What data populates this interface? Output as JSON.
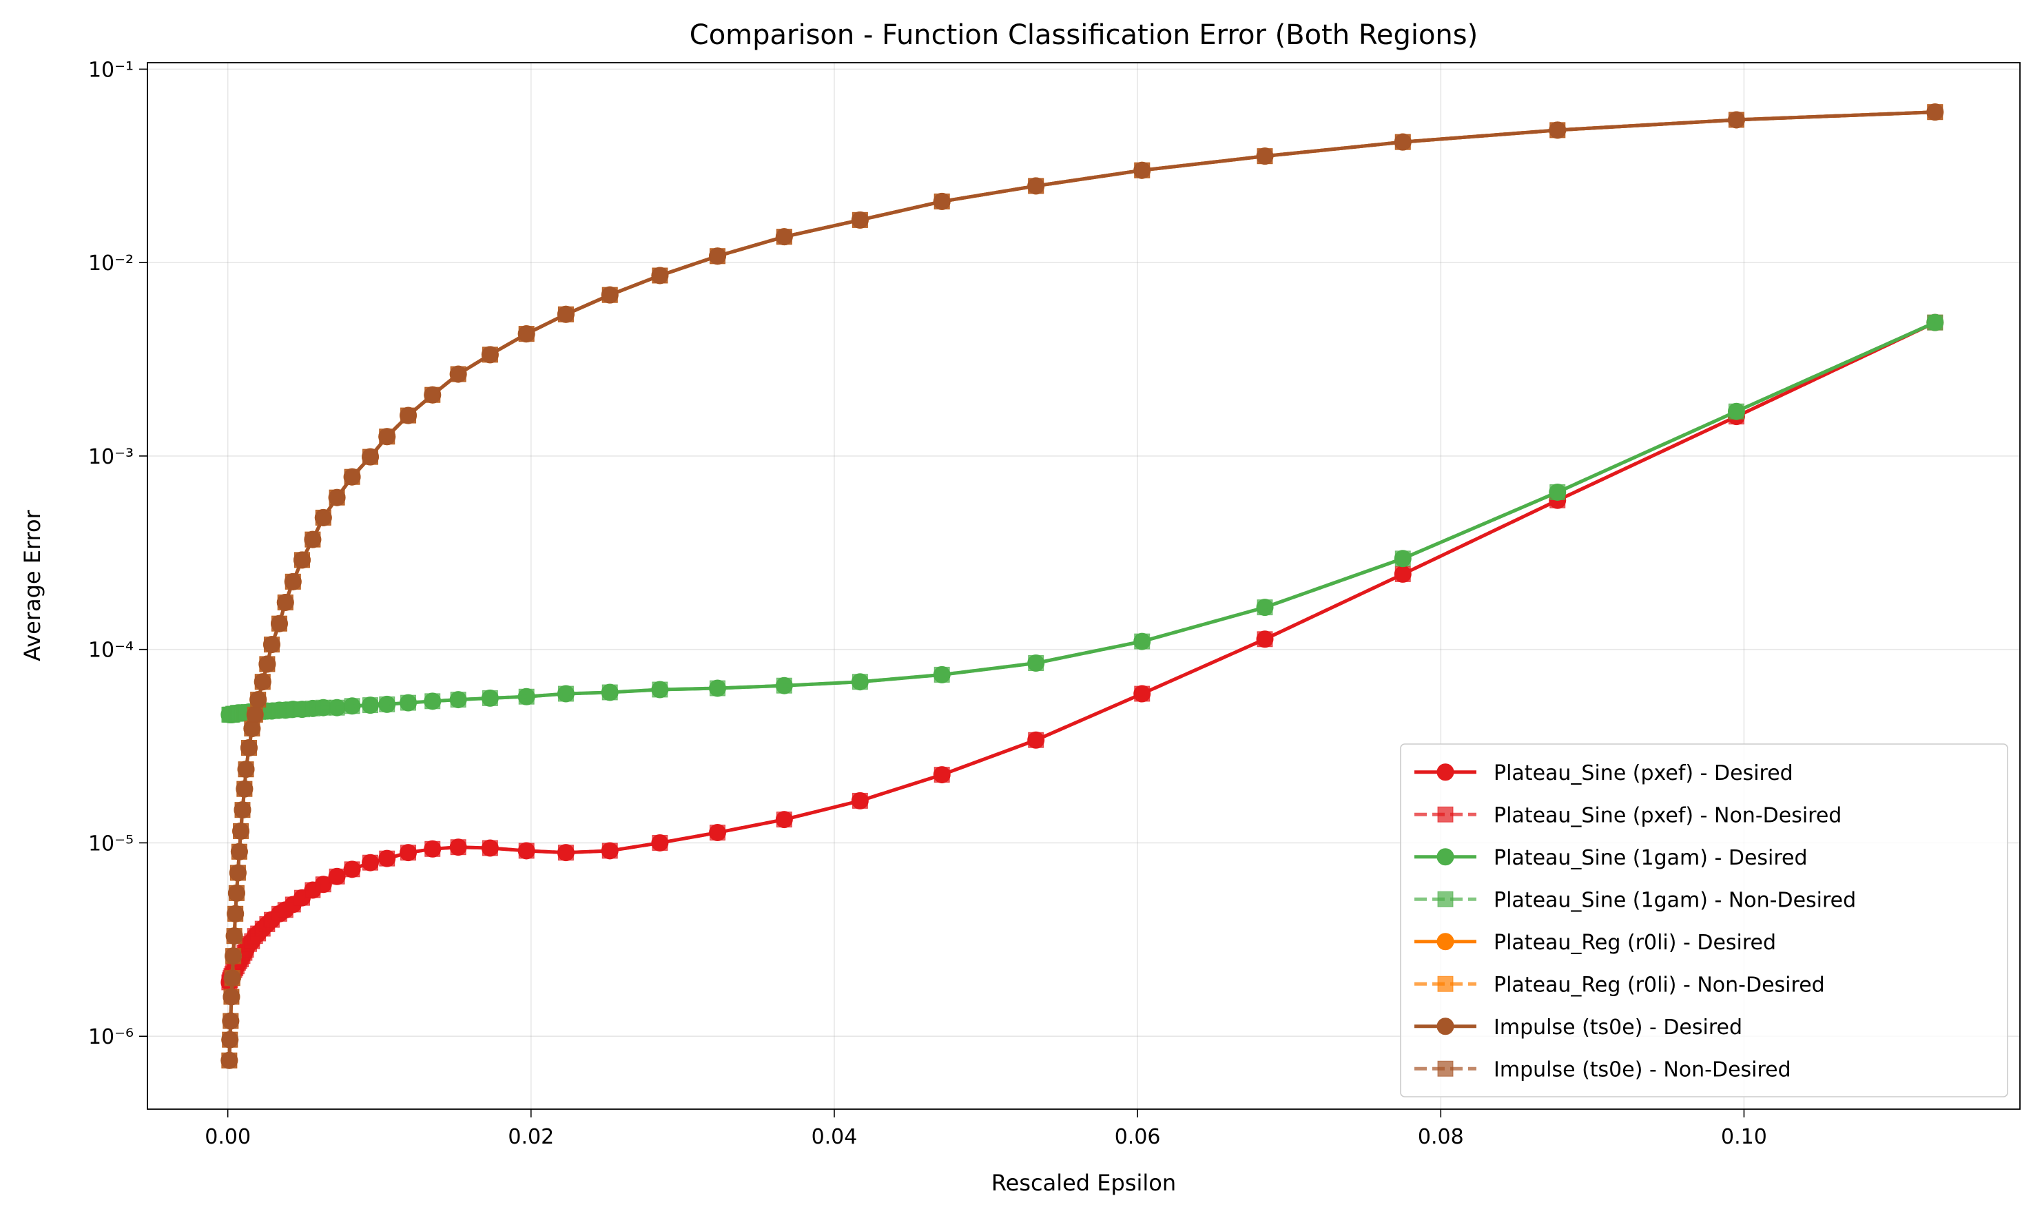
{
  "chart_data": {
    "type": "line",
    "title": "Comparison - Function Classification Error (Both Regions)",
    "xlabel": "Rescaled Epsilon",
    "ylabel": "Average Error",
    "log_y": true,
    "grid": true,
    "legend_loc": "lower right",
    "xlim": [
      -0.0053,
      0.1182
    ],
    "ylim": [
      4.2e-07,
      0.108
    ],
    "xticks": [
      {
        "value": 0,
        "label": "0.00"
      },
      {
        "value": 0.02,
        "label": "0.02"
      },
      {
        "value": 0.04,
        "label": "0.04"
      },
      {
        "value": 0.06,
        "label": "0.06"
      },
      {
        "value": 0.08,
        "label": "0.08"
      },
      {
        "value": 0.1,
        "label": "0.10"
      }
    ],
    "yticks": [
      {
        "value": 1e-06,
        "label": "10⁻⁶"
      },
      {
        "value": 1e-05,
        "label": "10⁻⁵"
      },
      {
        "value": 0.0001,
        "label": "10⁻⁴"
      },
      {
        "value": 0.001,
        "label": "10⁻³"
      },
      {
        "value": 0.01,
        "label": "10⁻²"
      },
      {
        "value": 0.1,
        "label": "10⁻¹"
      }
    ],
    "x": [
      0.0001,
      0.00014,
      0.00019,
      0.00024,
      0.0003,
      0.00036,
      0.00043,
      0.0005,
      0.00058,
      0.00067,
      0.00076,
      0.00086,
      0.00097,
      0.0011,
      0.0012,
      0.0014,
      0.0016,
      0.0018,
      0.002,
      0.0023,
      0.0026,
      0.0029,
      0.0034,
      0.0038,
      0.0043,
      0.0049,
      0.0056,
      0.0063,
      0.0072,
      0.0082,
      0.0094,
      0.0105,
      0.0119,
      0.0135,
      0.0152,
      0.0173,
      0.0197,
      0.0223,
      0.0252,
      0.0285,
      0.0323,
      0.0367,
      0.0417,
      0.0471,
      0.0533,
      0.0603,
      0.0684,
      0.0775,
      0.0877,
      0.0995,
      0.1126
    ],
    "series": [
      {
        "name": "Plateau_Sine (pxef) - Desired",
        "color": "#e31a1c",
        "marker": "circle",
        "dashed": false,
        "values": [
          1.9e-06,
          1.95e-06,
          2e-06,
          2.05e-06,
          2.1e-06,
          2.15e-06,
          2.2e-06,
          2.25e-06,
          2.3e-06,
          2.4e-06,
          2.45e-06,
          2.5e-06,
          2.6e-06,
          2.7e-06,
          2.8e-06,
          3e-06,
          3.1e-06,
          3.3e-06,
          3.4e-06,
          3.6e-06,
          3.8e-06,
          4e-06,
          4.3e-06,
          4.5e-06,
          4.8e-06,
          5.2e-06,
          5.7e-06,
          6.1e-06,
          6.7e-06,
          7.3e-06,
          7.9e-06,
          8.3e-06,
          8.9e-06,
          9.3e-06,
          9.5e-06,
          9.4e-06,
          9.1e-06,
          8.9e-06,
          9.1e-06,
          1e-05,
          1.13e-05,
          1.32e-05,
          1.65e-05,
          2.25e-05,
          3.4e-05,
          5.9e-05,
          0.000113,
          0.000245,
          0.00059,
          0.0016,
          0.0049
        ]
      },
      {
        "name": "Plateau_Sine (pxef) - Non-Desired",
        "color": "#e31a1c",
        "marker": "square",
        "dashed": true,
        "values": [
          1.9e-06,
          1.95e-06,
          2e-06,
          2.05e-06,
          2.1e-06,
          2.15e-06,
          2.2e-06,
          2.25e-06,
          2.3e-06,
          2.4e-06,
          2.45e-06,
          2.5e-06,
          2.6e-06,
          2.7e-06,
          2.8e-06,
          3e-06,
          3.1e-06,
          3.3e-06,
          3.4e-06,
          3.6e-06,
          3.8e-06,
          4e-06,
          4.3e-06,
          4.5e-06,
          4.8e-06,
          5.2e-06,
          5.7e-06,
          6.1e-06,
          6.7e-06,
          7.3e-06,
          7.9e-06,
          8.3e-06,
          8.9e-06,
          9.3e-06,
          9.5e-06,
          9.4e-06,
          9.1e-06,
          8.9e-06,
          9.1e-06,
          1e-05,
          1.13e-05,
          1.32e-05,
          1.65e-05,
          2.25e-05,
          3.4e-05,
          5.9e-05,
          0.000113,
          0.000245,
          0.00059,
          0.0016,
          0.0049
        ]
      },
      {
        "name": "Plateau_Sine (1gam) - Desired",
        "color": "#4daf4a",
        "marker": "circle",
        "dashed": false,
        "values": [
          4.6e-05,
          4.6e-05,
          4.6e-05,
          4.6e-05,
          4.6e-05,
          4.65e-05,
          4.65e-05,
          4.65e-05,
          4.65e-05,
          4.7e-05,
          4.7e-05,
          4.7e-05,
          4.7e-05,
          4.7e-05,
          4.7e-05,
          4.75e-05,
          4.75e-05,
          4.75e-05,
          4.75e-05,
          4.8e-05,
          4.8e-05,
          4.8e-05,
          4.85e-05,
          4.85e-05,
          4.9e-05,
          4.9e-05,
          4.95e-05,
          5e-05,
          5e-05,
          5.1e-05,
          5.15e-05,
          5.2e-05,
          5.3e-05,
          5.4e-05,
          5.5e-05,
          5.6e-05,
          5.7e-05,
          5.9e-05,
          6e-05,
          6.2e-05,
          6.3e-05,
          6.5e-05,
          6.8e-05,
          7.4e-05,
          8.5e-05,
          0.00011,
          0.000165,
          0.000295,
          0.00065,
          0.0017,
          0.0049
        ]
      },
      {
        "name": "Plateau_Sine (1gam) - Non-Desired",
        "color": "#4daf4a",
        "marker": "square",
        "dashed": true,
        "values": [
          4.6e-05,
          4.6e-05,
          4.6e-05,
          4.6e-05,
          4.6e-05,
          4.65e-05,
          4.65e-05,
          4.65e-05,
          4.65e-05,
          4.7e-05,
          4.7e-05,
          4.7e-05,
          4.7e-05,
          4.7e-05,
          4.7e-05,
          4.75e-05,
          4.75e-05,
          4.75e-05,
          4.75e-05,
          4.8e-05,
          4.8e-05,
          4.8e-05,
          4.85e-05,
          4.85e-05,
          4.9e-05,
          4.9e-05,
          4.95e-05,
          5e-05,
          5e-05,
          5.1e-05,
          5.15e-05,
          5.2e-05,
          5.3e-05,
          5.4e-05,
          5.5e-05,
          5.6e-05,
          5.7e-05,
          5.9e-05,
          6e-05,
          6.2e-05,
          6.3e-05,
          6.5e-05,
          6.8e-05,
          7.4e-05,
          8.5e-05,
          0.00011,
          0.000165,
          0.000295,
          0.00065,
          0.0017,
          0.0049
        ]
      },
      {
        "name": "Plateau_Reg (r0li) - Desired",
        "color": "#ff7f00",
        "marker": "circle",
        "dashed": false,
        "values": [
          7.5e-07,
          9.6e-07,
          1.2e-06,
          1.6e-06,
          2e-06,
          2.6e-06,
          3.3e-06,
          4.3e-06,
          5.5e-06,
          7e-06,
          9e-06,
          1.15e-05,
          1.48e-05,
          1.9e-05,
          2.4e-05,
          3.1e-05,
          3.9e-05,
          4.6e-05,
          5.5e-05,
          6.8e-05,
          8.4e-05,
          0.000106,
          0.000136,
          0.000175,
          0.000224,
          0.00029,
          0.00037,
          0.00048,
          0.00061,
          0.00078,
          0.00099,
          0.00126,
          0.00162,
          0.00207,
          0.00265,
          0.00334,
          0.00428,
          0.0054,
          0.0068,
          0.00857,
          0.0108,
          0.0136,
          0.0166,
          0.0207,
          0.0249,
          0.03,
          0.0355,
          0.042,
          0.0484,
          0.0547,
          0.06
        ]
      },
      {
        "name": "Plateau_Reg (r0li) - Non-Desired",
        "color": "#ff7f00",
        "marker": "square",
        "dashed": true,
        "values": [
          7.5e-07,
          9.6e-07,
          1.2e-06,
          1.6e-06,
          2e-06,
          2.6e-06,
          3.3e-06,
          4.3e-06,
          5.5e-06,
          7e-06,
          9e-06,
          1.15e-05,
          1.48e-05,
          1.9e-05,
          2.4e-05,
          3.1e-05,
          3.9e-05,
          4.6e-05,
          5.5e-05,
          6.8e-05,
          8.4e-05,
          0.000106,
          0.000136,
          0.000175,
          0.000224,
          0.00029,
          0.00037,
          0.00048,
          0.00061,
          0.00078,
          0.00099,
          0.00126,
          0.00162,
          0.00207,
          0.00265,
          0.00334,
          0.00428,
          0.0054,
          0.0068,
          0.00857,
          0.0108,
          0.0136,
          0.0166,
          0.0207,
          0.0249,
          0.03,
          0.0355,
          0.042,
          0.0484,
          0.0547,
          0.06
        ]
      },
      {
        "name": "Impulse (ts0e) - Desired",
        "color": "#a65628",
        "marker": "circle",
        "dashed": false,
        "values": [
          7.5e-07,
          9.6e-07,
          1.2e-06,
          1.6e-06,
          2e-06,
          2.6e-06,
          3.3e-06,
          4.3e-06,
          5.5e-06,
          7e-06,
          9e-06,
          1.15e-05,
          1.48e-05,
          1.9e-05,
          2.4e-05,
          3.1e-05,
          3.9e-05,
          4.6e-05,
          5.5e-05,
          6.8e-05,
          8.4e-05,
          0.000106,
          0.000136,
          0.000175,
          0.000224,
          0.00029,
          0.00037,
          0.00048,
          0.00061,
          0.00078,
          0.00099,
          0.00126,
          0.00162,
          0.00207,
          0.00265,
          0.00334,
          0.00428,
          0.0054,
          0.0068,
          0.00857,
          0.0108,
          0.0136,
          0.0166,
          0.0207,
          0.0249,
          0.03,
          0.0355,
          0.042,
          0.0484,
          0.0547,
          0.06
        ]
      },
      {
        "name": "Impulse (ts0e) - Non-Desired",
        "color": "#a65628",
        "marker": "square",
        "dashed": true,
        "values": [
          7.5e-07,
          9.6e-07,
          1.2e-06,
          1.6e-06,
          2e-06,
          2.6e-06,
          3.3e-06,
          4.3e-06,
          5.5e-06,
          7e-06,
          9e-06,
          1.15e-05,
          1.48e-05,
          1.9e-05,
          2.4e-05,
          3.1e-05,
          3.9e-05,
          4.6e-05,
          5.5e-05,
          6.8e-05,
          8.4e-05,
          0.000106,
          0.000136,
          0.000175,
          0.000224,
          0.00029,
          0.00037,
          0.00048,
          0.00061,
          0.00078,
          0.00099,
          0.00126,
          0.00162,
          0.00207,
          0.00265,
          0.00334,
          0.00428,
          0.0054,
          0.0068,
          0.00857,
          0.0108,
          0.0136,
          0.0166,
          0.0207,
          0.0249,
          0.03,
          0.0355,
          0.042,
          0.0484,
          0.0547,
          0.06
        ]
      }
    ]
  }
}
